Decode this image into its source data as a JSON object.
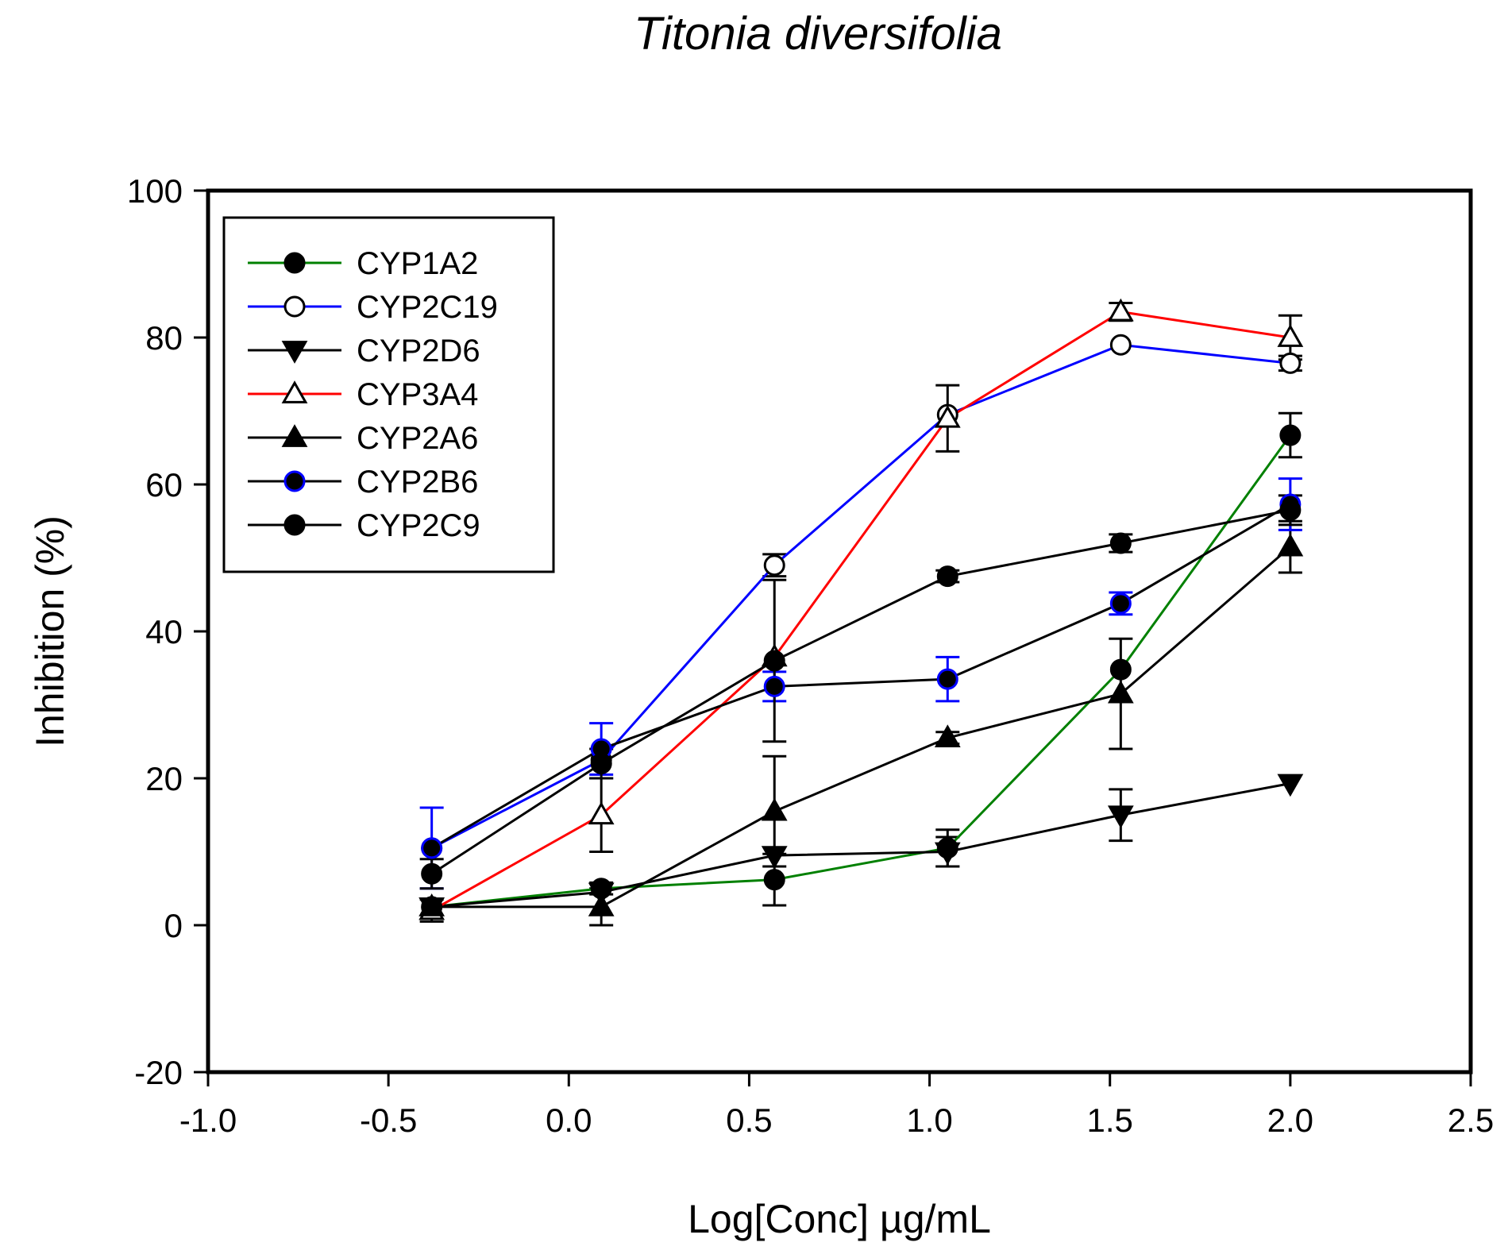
{
  "chart_data": {
    "type": "line",
    "title": "Titonia diversifolia",
    "xlabel": "Log[Conc] µg/mL",
    "ylabel": "Inhibition (%)",
    "xlim": [
      -1.0,
      2.5
    ],
    "ylim": [
      -20,
      100
    ],
    "xticks": [
      -1.0,
      -0.5,
      0.0,
      0.5,
      1.0,
      1.5,
      2.0,
      2.5
    ],
    "xtick_labels": [
      "-1.0",
      "-0.5",
      "0.0",
      "0.5",
      "1.0",
      "1.5",
      "2.0",
      "2.5"
    ],
    "yticks": [
      -20,
      0,
      20,
      40,
      60,
      80,
      100
    ],
    "ytick_labels": [
      "-20",
      "0",
      "20",
      "40",
      "60",
      "80",
      "100"
    ],
    "legend_position": "top-left",
    "series": [
      {
        "name": "CYP1A2",
        "line_color": "#008000",
        "marker": "circle-filled",
        "marker_fill": "#000000",
        "marker_stroke": "#000000",
        "error_color": "#000000",
        "x": [
          -0.38,
          0.09,
          0.57,
          1.05,
          1.53,
          2.0
        ],
        "y": [
          2.5,
          5.0,
          6.2,
          10.5,
          34.8,
          66.7
        ],
        "err": [
          0,
          0.8,
          3.5,
          2.5,
          0,
          3.0
        ]
      },
      {
        "name": "CYP2C19",
        "line_color": "#0000ff",
        "marker": "circle-open",
        "marker_fill": "#ffffff",
        "marker_stroke": "#000000",
        "error_color": "#000000",
        "x": [
          -0.38,
          0.09,
          0.57,
          1.05,
          1.53,
          2.0
        ],
        "y": [
          10.5,
          22.5,
          49.0,
          69.5,
          79.0,
          76.5
        ],
        "err": [
          0,
          0,
          1.5,
          0,
          0,
          1.0
        ]
      },
      {
        "name": "CYP2D6",
        "line_color": "#000000",
        "marker": "triangle-down-filled",
        "marker_fill": "#000000",
        "marker_stroke": "#000000",
        "error_color": "#000000",
        "x": [
          -0.38,
          0.09,
          0.57,
          1.05,
          1.53,
          2.0
        ],
        "y": [
          2.5,
          4.5,
          9.5,
          10.0,
          15.0,
          19.3
        ],
        "err": [
          0,
          0,
          0,
          2.0,
          3.5,
          0
        ]
      },
      {
        "name": "CYP3A4",
        "line_color": "#ff0000",
        "marker": "triangle-up-open",
        "marker_fill": "#ffffff",
        "marker_stroke": "#000000",
        "error_color": "#000000",
        "x": [
          -0.38,
          0.09,
          0.57,
          1.05,
          1.53,
          2.0
        ],
        "y": [
          2.0,
          15.0,
          36.5,
          69.0,
          83.5,
          80.0
        ],
        "err": [
          1.5,
          5.0,
          0,
          4.5,
          1.2,
          3.0
        ]
      },
      {
        "name": "CYP2A6",
        "line_color": "#000000",
        "marker": "triangle-up-filled",
        "marker_fill": "#000000",
        "marker_stroke": "#000000",
        "error_color": "#000000",
        "x": [
          -0.38,
          0.09,
          0.57,
          1.05,
          1.53,
          2.0
        ],
        "y": [
          2.5,
          2.5,
          15.5,
          25.5,
          31.5,
          51.5
        ],
        "err": [
          0,
          2.5,
          7.5,
          0.8,
          7.5,
          3.5
        ]
      },
      {
        "name": "CYP2B6",
        "line_color": "#000000",
        "marker": "circle-filled-blue",
        "marker_fill": "#000000",
        "marker_stroke": "#0000ff",
        "error_color": "#0000ff",
        "x": [
          -0.38,
          0.09,
          0.57,
          1.05,
          1.53,
          2.0
        ],
        "y": [
          10.5,
          24.0,
          32.5,
          33.5,
          43.8,
          57.3
        ],
        "err": [
          5.5,
          3.5,
          2.0,
          3.0,
          1.5,
          3.5
        ]
      },
      {
        "name": "CYP2C9",
        "line_color": "#000000",
        "marker": "circle-filled",
        "marker_fill": "#000000",
        "marker_stroke": "#000000",
        "error_color": "#000000",
        "x": [
          -0.38,
          0.09,
          0.57,
          1.05,
          1.53,
          2.0
        ],
        "y": [
          7.0,
          22.0,
          36.0,
          47.5,
          52.0,
          56.5
        ],
        "err": [
          2.0,
          2.0,
          11.0,
          0.8,
          1.2,
          2.0
        ]
      }
    ]
  }
}
